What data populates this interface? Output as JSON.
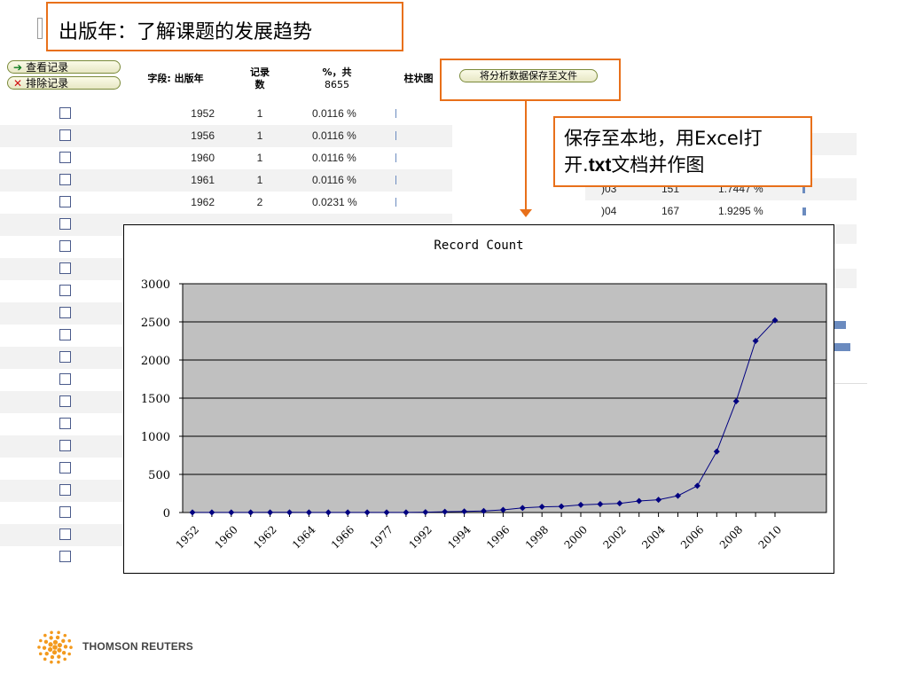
{
  "title": "出版年：了解课题的发展趋势",
  "buttons": {
    "view": "查看记录",
    "exclude": "排除记录",
    "save": "将分析数据保存至文件"
  },
  "table_header": {
    "field": "字段: 出版年",
    "count_l1": "记录",
    "count_l2": "数",
    "pct_l1": "%，共",
    "pct_l2": "8655",
    "bar": "柱状图"
  },
  "rows": [
    {
      "year": "1952",
      "count": "1",
      "pct": "0.0116 %",
      "checked": false
    },
    {
      "year": "1956",
      "count": "1",
      "pct": "0.0116 %",
      "checked": false
    },
    {
      "year": "1960",
      "count": "1",
      "pct": "0.0116 %",
      "checked": false
    },
    {
      "year": "1961",
      "count": "1",
      "pct": "0.0116 %",
      "checked": false
    },
    {
      "year": "1962",
      "count": "2",
      "pct": "0.0231 %",
      "checked": false
    }
  ],
  "right_rows": [
    {
      "year": ")03",
      "count": "151",
      "pct": "1.7447 %"
    },
    {
      "year": ")04",
      "count": "167",
      "pct": "1.9295 %"
    }
  ],
  "callout": {
    "line1": "保存至本地，用Excel打",
    "line2_pre": "开.",
    "line2_bold": "txt",
    "line2_post": "文档并作图"
  },
  "chart_data": {
    "type": "line",
    "title": "Record Count",
    "xlabel": "",
    "ylabel": "",
    "ylim": [
      0,
      3000
    ],
    "yticks": [
      0,
      500,
      1000,
      1500,
      2000,
      2500,
      3000
    ],
    "xtick_labels": [
      "1952",
      "1960",
      "1962",
      "1964",
      "1966",
      "1977",
      "1992",
      "1994",
      "1996",
      "1998",
      "2000",
      "2002",
      "2004",
      "2006",
      "2008",
      "2010"
    ],
    "grid": "horizontal",
    "series": [
      {
        "color": "#000080",
        "values": [
          1,
          1,
          1,
          1,
          2,
          2,
          1,
          1,
          1,
          1,
          1,
          1,
          5,
          10,
          15,
          20,
          35,
          60,
          75,
          80,
          100,
          110,
          120,
          151,
          167,
          220,
          350,
          800,
          1460,
          2250,
          2520
        ]
      }
    ],
    "plot_bg": "#c0c0c0"
  },
  "logo": {
    "text": "THOMSON REUTERS"
  }
}
